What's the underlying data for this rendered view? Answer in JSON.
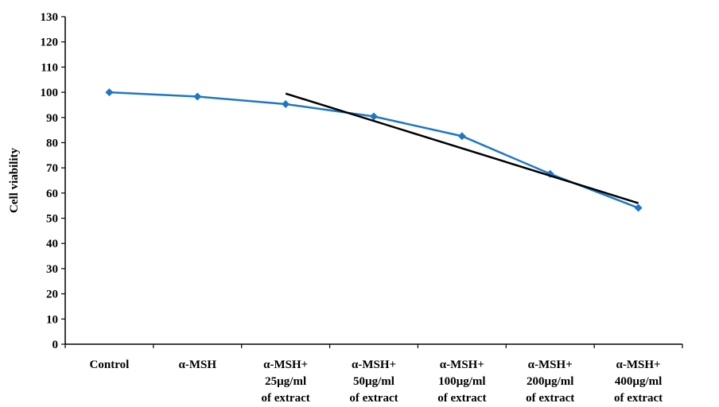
{
  "chart_data": {
    "type": "line",
    "title": "",
    "xlabel": "",
    "ylabel": "Cell viability",
    "ylim": [
      0,
      130
    ],
    "yticks": [
      0,
      10,
      20,
      30,
      40,
      50,
      60,
      70,
      80,
      90,
      100,
      110,
      120,
      130
    ],
    "grid": false,
    "legend": "none",
    "categories": [
      [
        "Control"
      ],
      [
        "α-MSH"
      ],
      [
        "α-MSH+",
        "25µg/ml",
        "of extract"
      ],
      [
        "α-MSH+",
        "50µg/ml",
        "of extract"
      ],
      [
        "α-MSH+",
        "100µg/ml",
        "of extract"
      ],
      [
        "α-MSH+",
        "200µg/ml",
        "of extract"
      ],
      [
        "α-MSH+",
        "400µg/ml",
        "of extract"
      ]
    ],
    "series": [
      {
        "values": [
          100,
          98.3,
          95.3,
          90.4,
          82.6,
          67.6,
          54.1
        ],
        "color": "#1f77c4",
        "marker": "diamond"
      }
    ],
    "trendline": {
      "color": "#000000",
      "x_start": 2.0,
      "y_start": 99.5,
      "x_end": 6.0,
      "y_end": 56.0
    }
  }
}
